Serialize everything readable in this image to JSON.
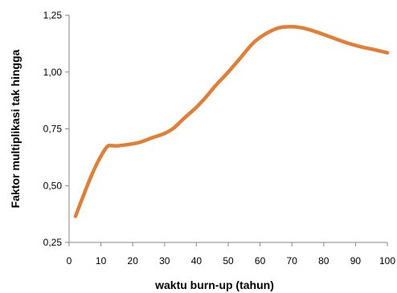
{
  "chart_data": {
    "type": "line",
    "title": "",
    "xlabel": "waktu burn-up (tahun)",
    "ylabel": "Faktor multiplikasi tak hingga",
    "xlim": [
      0,
      100
    ],
    "ylim": [
      0.25,
      1.25
    ],
    "x_ticks": [
      0,
      10,
      20,
      30,
      40,
      50,
      60,
      70,
      80,
      90,
      100
    ],
    "x_tick_labels": [
      "0",
      "10",
      "20",
      "30",
      "40",
      "50",
      "60",
      "70",
      "80",
      "90",
      "100"
    ],
    "y_ticks": [
      0.25,
      0.5,
      0.75,
      1.0,
      1.25
    ],
    "y_tick_labels": [
      "0,25",
      "0,50",
      "0,75",
      "1,00",
      "1,25"
    ],
    "grid": false,
    "legend": "none",
    "series": [
      {
        "color": "#e07f35",
        "x": [
          2,
          4,
          6,
          8,
          10,
          12,
          13,
          15,
          18,
          22,
          26,
          30,
          33,
          36,
          40,
          43,
          46,
          50,
          54,
          58,
          62,
          66,
          70,
          73,
          77,
          82,
          87,
          92,
          96,
          100
        ],
        "y": [
          0.365,
          0.438,
          0.51,
          0.575,
          0.63,
          0.672,
          0.676,
          0.675,
          0.68,
          0.69,
          0.71,
          0.73,
          0.755,
          0.795,
          0.845,
          0.89,
          0.94,
          1.0,
          1.065,
          1.13,
          1.17,
          1.195,
          1.2,
          1.195,
          1.18,
          1.155,
          1.13,
          1.11,
          1.098,
          1.085
        ]
      }
    ]
  }
}
